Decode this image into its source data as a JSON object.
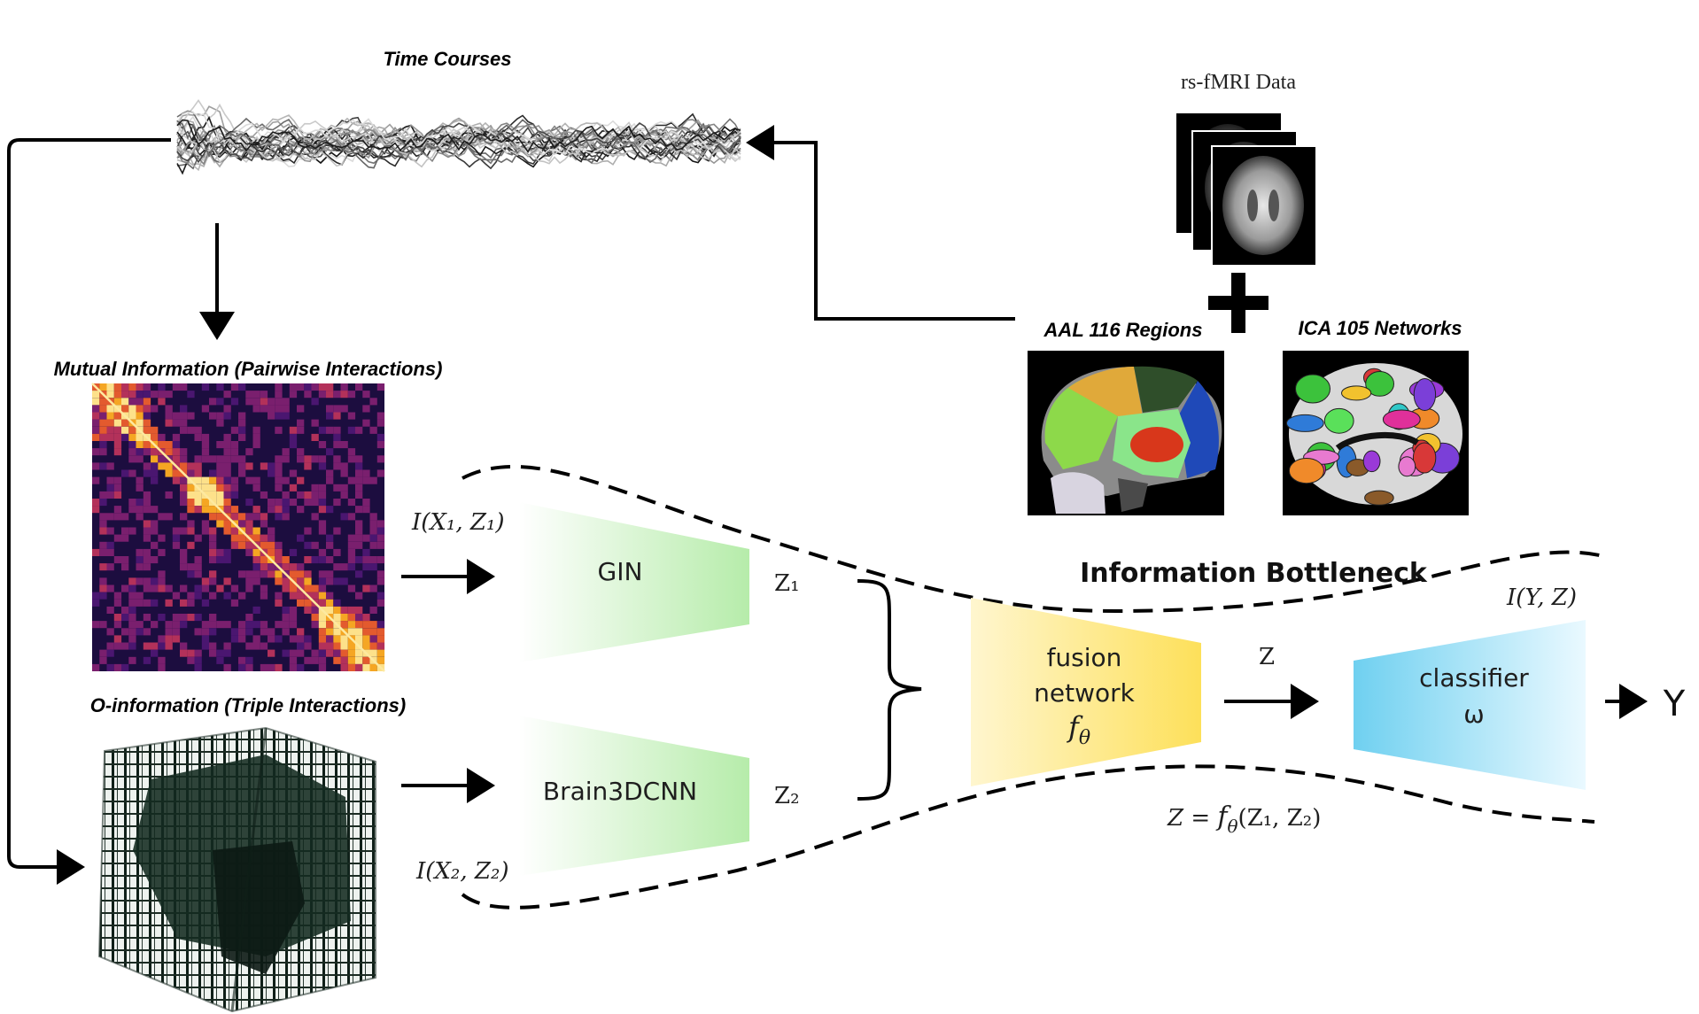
{
  "labels": {
    "time_courses": "Time Courses",
    "rs_fmri": "rs-fMRI Data",
    "aal": "AAL 116 Regions",
    "ica": "ICA  105 Networks",
    "mutual_info": "Mutual Information (Pairwise Interactions)",
    "o_info": "O-information (Triple Interactions)",
    "info_bottleneck": "Information Bottleneck"
  },
  "blocks": {
    "gin": "GIN",
    "brain3dcnn": "Brain3DCNN",
    "fusion_line1": "fusion",
    "fusion_line2": "network",
    "fusion_fn": "f",
    "fusion_sub": "θ",
    "classifier_line1": "classifier",
    "classifier_line2": "ω"
  },
  "math": {
    "i_x1_z1": "I(X₁, Z₁)",
    "i_x2_z2": "I(X₂, Z₂)",
    "z1": "Z₁",
    "z2": "Z₂",
    "z": "Z",
    "i_y_z": "I(Y, Z)",
    "z_eq_prefix": "Z = ",
    "z_eq_fn": "f",
    "z_eq_sub": "θ",
    "z_eq_args": "(Z₁, Z₂)",
    "y": "Y"
  },
  "colors": {
    "gin_fill": "#b6ecaa",
    "fusion_fill": "#fde26a",
    "classifier_fill": "#7fd6f2",
    "matrix_bg": "#1c0d3f",
    "matrix_hot": "#f5a623"
  }
}
